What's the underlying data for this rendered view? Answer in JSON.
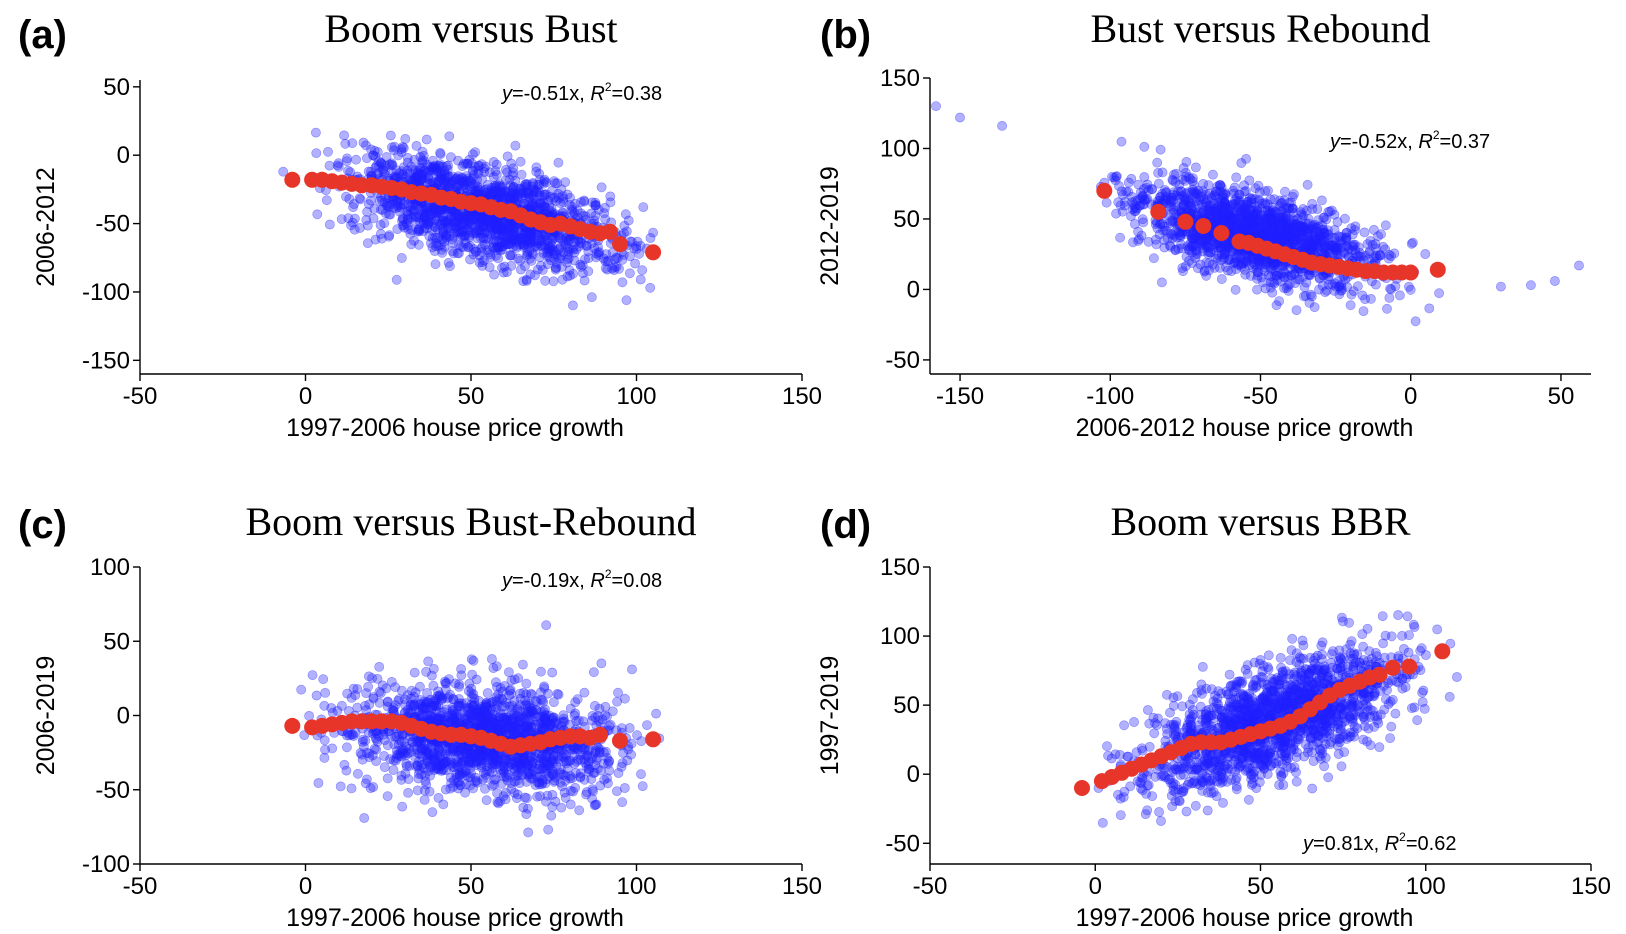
{
  "chart_data": [
    {
      "type": "scatter",
      "panel_label": "(a)",
      "title": "Boom versus Bust",
      "xlabel": "1997-2006 house price growth",
      "ylabel": "2006-2012",
      "xlim": [
        -50,
        150
      ],
      "ylim": [
        -160,
        55
      ],
      "xticks": [
        -50,
        0,
        50,
        100,
        150
      ],
      "xtick_labels": [
        "-50",
        "0",
        "50",
        "100",
        "150"
      ],
      "yticks": [
        50,
        0,
        -50,
        -100,
        -150
      ],
      "ytick_labels": [
        "50",
        "0",
        "-50",
        "-100",
        "-150"
      ],
      "equation": {
        "prefix": "y",
        "formula": "=-0.51x, ",
        "r": "R",
        "sup": "2",
        "value": "=0.38",
        "position": "top-right"
      },
      "colors": {
        "points": "#1f1fff",
        "binned_means": "#e8352a"
      },
      "cloud": {
        "x_range": [
          -22,
          130
        ],
        "slope": -0.51,
        "intercept": -14,
        "spread": 17,
        "n": 1700
      },
      "binned_means": [
        [
          -4,
          -18
        ],
        [
          2,
          -18
        ],
        [
          5,
          -18
        ],
        [
          8,
          -19
        ],
        [
          11,
          -20
        ],
        [
          14,
          -21
        ],
        [
          17,
          -22
        ],
        [
          20,
          -22
        ],
        [
          23,
          -23
        ],
        [
          26,
          -24
        ],
        [
          29,
          -25
        ],
        [
          32,
          -27
        ],
        [
          35,
          -28
        ],
        [
          38,
          -29
        ],
        [
          41,
          -31
        ],
        [
          44,
          -32
        ],
        [
          47,
          -34
        ],
        [
          50,
          -35
        ],
        [
          53,
          -36
        ],
        [
          56,
          -38
        ],
        [
          59,
          -40
        ],
        [
          62,
          -41
        ],
        [
          65,
          -44
        ],
        [
          68,
          -47
        ],
        [
          71,
          -49
        ],
        [
          74,
          -51
        ],
        [
          77,
          -50
        ],
        [
          80,
          -52
        ],
        [
          83,
          -54
        ],
        [
          86,
          -56
        ],
        [
          89,
          -57
        ],
        [
          92,
          -56
        ],
        [
          95,
          -65
        ],
        [
          105,
          -71
        ]
      ]
    },
    {
      "type": "scatter",
      "panel_label": "(b)",
      "title": "Bust versus Rebound",
      "xlabel": "2006-2012 house price growth",
      "ylabel": "2012-2019",
      "xlim": [
        -160,
        60
      ],
      "ylim": [
        -60,
        150
      ],
      "xticks": [
        -150,
        -100,
        -50,
        0,
        50
      ],
      "xtick_labels": [
        "-150",
        "-100",
        "-50",
        "0",
        "50"
      ],
      "yticks": [
        150,
        100,
        50,
        0,
        -50
      ],
      "ytick_labels": [
        "150",
        "100",
        "50",
        "0",
        "-50"
      ],
      "equation": {
        "prefix": "y",
        "formula": "=-0.52x, ",
        "r": "R",
        "sup": "2",
        "value": "=0.37",
        "position": "top-right"
      },
      "colors": {
        "points": "#1f1fff",
        "binned_means": "#e8352a"
      },
      "cloud": {
        "x_range": [
          -128,
          25
        ],
        "slope": -0.52,
        "intercept": 6,
        "spread": 17,
        "n": 1700
      },
      "extra_points": [
        [
          -158,
          130
        ],
        [
          -150,
          122
        ],
        [
          -136,
          116
        ],
        [
          30,
          2
        ],
        [
          40,
          3
        ],
        [
          48,
          6
        ],
        [
          56,
          17
        ]
      ],
      "binned_means": [
        [
          -102,
          70
        ],
        [
          -84,
          55
        ],
        [
          -75,
          48
        ],
        [
          -69,
          45
        ],
        [
          -63,
          40
        ],
        [
          -57,
          34
        ],
        [
          -54,
          33
        ],
        [
          -51,
          31
        ],
        [
          -48,
          29
        ],
        [
          -45,
          27
        ],
        [
          -42,
          25
        ],
        [
          -39,
          23
        ],
        [
          -36,
          21
        ],
        [
          -33,
          19
        ],
        [
          -30,
          18
        ],
        [
          -27,
          17
        ],
        [
          -24,
          16
        ],
        [
          -21,
          15
        ],
        [
          -18,
          14
        ],
        [
          -15,
          13
        ],
        [
          -12,
          13
        ],
        [
          -9,
          12
        ],
        [
          -6,
          12
        ],
        [
          -3,
          12
        ],
        [
          0,
          12
        ],
        [
          9,
          14
        ]
      ]
    },
    {
      "type": "scatter",
      "panel_label": "(c)",
      "title": "Boom versus Bust-Rebound",
      "xlabel": "1997-2006 house price growth",
      "ylabel": "2006-2019",
      "xlim": [
        -50,
        150
      ],
      "ylim": [
        -100,
        100
      ],
      "xticks": [
        -50,
        0,
        50,
        100,
        150
      ],
      "xtick_labels": [
        "-50",
        "0",
        "50",
        "100",
        "150"
      ],
      "yticks": [
        100,
        50,
        0,
        -50,
        -100
      ],
      "ytick_labels": [
        "100",
        "50",
        "0",
        "-50",
        "-100"
      ],
      "equation": {
        "prefix": "y",
        "formula": "=-0.19x, ",
        "r": "R",
        "sup": "2",
        "value": "=0.08",
        "position": "top-right"
      },
      "colors": {
        "points": "#1f1fff",
        "binned_means": "#e8352a"
      },
      "cloud": {
        "x_range": [
          -22,
          130
        ],
        "slope": -0.19,
        "intercept": -5,
        "spread": 18,
        "n": 1700
      },
      "binned_means": [
        [
          -4,
          -7
        ],
        [
          2,
          -8
        ],
        [
          5,
          -7
        ],
        [
          8,
          -6
        ],
        [
          11,
          -5
        ],
        [
          14,
          -4
        ],
        [
          17,
          -4
        ],
        [
          20,
          -4
        ],
        [
          23,
          -4
        ],
        [
          26,
          -4
        ],
        [
          29,
          -5
        ],
        [
          32,
          -7
        ],
        [
          35,
          -9
        ],
        [
          38,
          -11
        ],
        [
          41,
          -12
        ],
        [
          44,
          -13
        ],
        [
          47,
          -13
        ],
        [
          50,
          -14
        ],
        [
          53,
          -15
        ],
        [
          56,
          -17
        ],
        [
          59,
          -19
        ],
        [
          62,
          -21
        ],
        [
          65,
          -20
        ],
        [
          68,
          -19
        ],
        [
          71,
          -18
        ],
        [
          74,
          -16
        ],
        [
          77,
          -15
        ],
        [
          80,
          -14
        ],
        [
          83,
          -14
        ],
        [
          86,
          -15
        ],
        [
          89,
          -13
        ],
        [
          95,
          -17
        ],
        [
          105,
          -16
        ]
      ]
    },
    {
      "type": "scatter",
      "panel_label": "(d)",
      "title": "Boom versus BBR",
      "xlabel": "1997-2006 house price growth",
      "ylabel": "1997-2019",
      "xlim": [
        -50,
        150
      ],
      "ylim": [
        -65,
        150
      ],
      "xticks": [
        -50,
        0,
        50,
        100,
        150
      ],
      "xtick_labels": [
        "-50",
        "0",
        "50",
        "100",
        "150"
      ],
      "yticks": [
        150,
        100,
        50,
        0,
        -50
      ],
      "ytick_labels": [
        "150",
        "100",
        "50",
        "0",
        "-50"
      ],
      "equation": {
        "prefix": "y",
        "formula": "=0.81x, ",
        "r": "R",
        "sup": "2",
        "value": "=0.62",
        "position": "bottom-right"
      },
      "colors": {
        "points": "#1f1fff",
        "binned_means": "#e8352a"
      },
      "cloud": {
        "x_range": [
          -22,
          130
        ],
        "slope": 0.81,
        "intercept": -5,
        "spread": 19,
        "n": 1700
      },
      "binned_means": [
        [
          -4,
          -10
        ],
        [
          2,
          -5
        ],
        [
          5,
          -2
        ],
        [
          8,
          1
        ],
        [
          11,
          4
        ],
        [
          14,
          7
        ],
        [
          17,
          10
        ],
        [
          20,
          13
        ],
        [
          23,
          16
        ],
        [
          26,
          19
        ],
        [
          29,
          22
        ],
        [
          32,
          23
        ],
        [
          35,
          23
        ],
        [
          38,
          23
        ],
        [
          41,
          25
        ],
        [
          44,
          27
        ],
        [
          47,
          29
        ],
        [
          50,
          31
        ],
        [
          53,
          33
        ],
        [
          56,
          35
        ],
        [
          59,
          38
        ],
        [
          62,
          42
        ],
        [
          65,
          47
        ],
        [
          68,
          52
        ],
        [
          71,
          57
        ],
        [
          74,
          61
        ],
        [
          77,
          64
        ],
        [
          80,
          67
        ],
        [
          83,
          70
        ],
        [
          86,
          72
        ],
        [
          90,
          77
        ],
        [
          95,
          78
        ],
        [
          105,
          89
        ]
      ]
    }
  ]
}
